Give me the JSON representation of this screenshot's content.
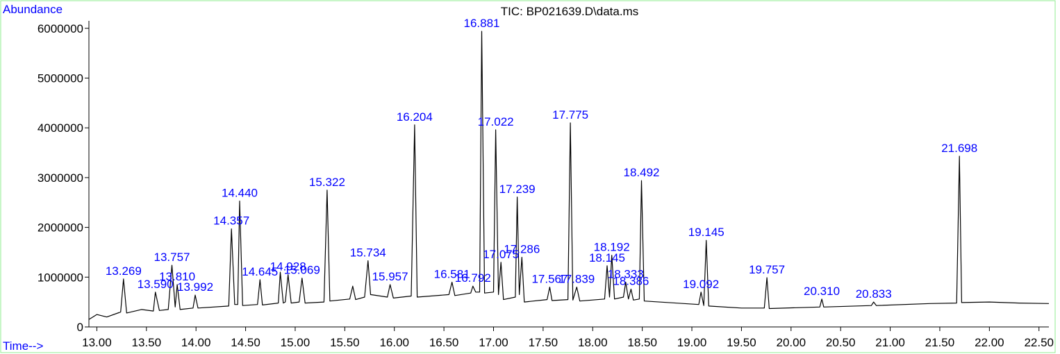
{
  "chart_data": {
    "type": "line",
    "title": "TIC: BP021639.D\\data.ms",
    "y_label": "Abundance",
    "x_label": "Time-->",
    "xlim": [
      12.92,
      22.6
    ],
    "ylim": [
      0,
      6150000
    ],
    "xticks": [
      {
        "value": 13,
        "label": "13.00"
      },
      {
        "value": 13.5,
        "label": "13.50"
      },
      {
        "value": 14,
        "label": "14.00"
      },
      {
        "value": 14.5,
        "label": "14.50"
      },
      {
        "value": 15,
        "label": "15.00"
      },
      {
        "value": 15.5,
        "label": "15.50"
      },
      {
        "value": 16,
        "label": "16.00"
      },
      {
        "value": 16.5,
        "label": "16.50"
      },
      {
        "value": 17,
        "label": "17.00"
      },
      {
        "value": 17.5,
        "label": "17.50"
      },
      {
        "value": 18,
        "label": "18.00"
      },
      {
        "value": 18.5,
        "label": "18.50"
      },
      {
        "value": 19,
        "label": "19.00"
      },
      {
        "value": 19.5,
        "label": "19.50"
      },
      {
        "value": 20,
        "label": "20.00"
      },
      {
        "value": 20.5,
        "label": "20.50"
      },
      {
        "value": 21,
        "label": "21.00"
      },
      {
        "value": 21.5,
        "label": "21.50"
      },
      {
        "value": 22,
        "label": "22.00"
      },
      {
        "value": 22.5,
        "label": "22.50"
      }
    ],
    "yticks": [
      0,
      1000000,
      2000000,
      3000000,
      4000000,
      5000000,
      6000000
    ],
    "color": "#000000",
    "label_color": "#0000ff",
    "x": [
      12.92,
      13.0,
      13.1,
      13.24,
      13.269,
      13.3,
      13.45,
      13.57,
      13.59,
      13.63,
      13.72,
      13.757,
      13.79,
      13.81,
      13.84,
      13.97,
      13.992,
      14.02,
      14.33,
      14.357,
      14.39,
      14.42,
      14.44,
      14.47,
      14.62,
      14.645,
      14.67,
      14.83,
      14.85,
      14.88,
      14.9,
      14.928,
      14.96,
      15.04,
      15.069,
      15.1,
      15.29,
      15.322,
      15.35,
      15.55,
      15.58,
      15.61,
      15.7,
      15.734,
      15.76,
      15.93,
      15.957,
      15.99,
      16.17,
      16.204,
      16.23,
      16.55,
      16.581,
      16.61,
      16.77,
      16.792,
      16.82,
      16.86,
      16.881,
      16.91,
      17.0,
      17.022,
      17.05,
      17.075,
      17.1,
      17.22,
      17.239,
      17.26,
      17.286,
      17.31,
      17.54,
      17.567,
      17.59,
      17.75,
      17.775,
      17.8,
      17.839,
      17.87,
      18.12,
      18.145,
      18.17,
      18.192,
      18.22,
      18.31,
      18.333,
      18.36,
      18.386,
      18.41,
      18.47,
      18.492,
      18.52,
      19.07,
      19.092,
      19.12,
      19.145,
      19.17,
      19.5,
      19.73,
      19.757,
      19.78,
      20.29,
      20.31,
      20.33,
      20.81,
      20.833,
      20.86,
      21.4,
      21.67,
      21.698,
      21.72,
      22.0,
      22.3,
      22.6
    ],
    "values": [
      150000,
      250000,
      200000,
      300000,
      963000,
      280000,
      350000,
      320000,
      700000,
      330000,
      350000,
      1240000,
      400000,
      850000,
      350000,
      380000,
      640000,
      380000,
      420000,
      1970000,
      450000,
      450000,
      2530000,
      430000,
      450000,
      950000,
      440000,
      480000,
      1100000,
      480000,
      500000,
      1050000,
      480000,
      500000,
      980000,
      480000,
      500000,
      2750000,
      520000,
      560000,
      820000,
      550000,
      600000,
      1330000,
      650000,
      600000,
      850000,
      580000,
      620000,
      4060000,
      600000,
      650000,
      900000,
      630000,
      680000,
      820000,
      700000,
      700000,
      5940000,
      680000,
      700000,
      3960000,
      650000,
      1300000,
      550000,
      600000,
      2610000,
      650000,
      1400000,
      500000,
      550000,
      800000,
      530000,
      550000,
      4100000,
      540000,
      800000,
      520000,
      560000,
      1230000,
      600000,
      1440000,
      560000,
      600000,
      900000,
      560000,
      760000,
      540000,
      560000,
      2940000,
      520000,
      450000,
      700000,
      430000,
      1740000,
      420000,
      380000,
      380000,
      990000,
      370000,
      400000,
      560000,
      400000,
      430000,
      500000,
      430000,
      470000,
      480000,
      3430000,
      490000,
      500000,
      480000,
      470000
    ],
    "peaks": [
      {
        "label": "13.269",
        "x": 13.269,
        "y": 963000
      },
      {
        "label": "13.590",
        "x": 13.59,
        "y": 700000
      },
      {
        "label": "13.757",
        "x": 13.757,
        "y": 1240000
      },
      {
        "label": "13.810",
        "x": 13.81,
        "y": 850000
      },
      {
        "label": "13.992",
        "x": 13.992,
        "y": 640000
      },
      {
        "label": "14.357",
        "x": 14.357,
        "y": 1970000
      },
      {
        "label": "14.440",
        "x": 14.44,
        "y": 2530000
      },
      {
        "label": "14.645",
        "x": 14.645,
        "y": 950000
      },
      {
        "label": "14.928",
        "x": 14.928,
        "y": 1050000
      },
      {
        "label": "15.069",
        "x": 15.069,
        "y": 980000
      },
      {
        "label": "15.322",
        "x": 15.322,
        "y": 2750000
      },
      {
        "label": "15.734",
        "x": 15.734,
        "y": 1330000
      },
      {
        "label": "15.957",
        "x": 15.957,
        "y": 850000
      },
      {
        "label": "16.204",
        "x": 16.204,
        "y": 4060000
      },
      {
        "label": "16.581",
        "x": 16.581,
        "y": 900000
      },
      {
        "label": "16.792",
        "x": 16.792,
        "y": 820000
      },
      {
        "label": "16.881",
        "x": 16.881,
        "y": 5940000
      },
      {
        "label": "17.022",
        "x": 17.022,
        "y": 3960000
      },
      {
        "label": "17.075",
        "x": 17.075,
        "y": 1300000
      },
      {
        "label": "17.239",
        "x": 17.239,
        "y": 2610000
      },
      {
        "label": "17.286",
        "x": 17.286,
        "y": 1400000
      },
      {
        "label": "17.567",
        "x": 17.567,
        "y": 800000
      },
      {
        "label": "17.775",
        "x": 17.775,
        "y": 4100000
      },
      {
        "label": "17.839",
        "x": 17.839,
        "y": 800000
      },
      {
        "label": "18.145",
        "x": 18.145,
        "y": 1230000
      },
      {
        "label": "18.192",
        "x": 18.192,
        "y": 1440000
      },
      {
        "label": "18.333",
        "x": 18.333,
        "y": 900000
      },
      {
        "label": "18.386",
        "x": 18.386,
        "y": 760000
      },
      {
        "label": "18.492",
        "x": 18.492,
        "y": 2940000
      },
      {
        "label": "19.092",
        "x": 19.092,
        "y": 700000
      },
      {
        "label": "19.145",
        "x": 19.145,
        "y": 1740000
      },
      {
        "label": "19.757",
        "x": 19.757,
        "y": 990000
      },
      {
        "label": "20.310",
        "x": 20.31,
        "y": 560000
      },
      {
        "label": "20.833",
        "x": 20.833,
        "y": 500000
      },
      {
        "label": "21.698",
        "x": 21.698,
        "y": 3430000
      }
    ]
  }
}
